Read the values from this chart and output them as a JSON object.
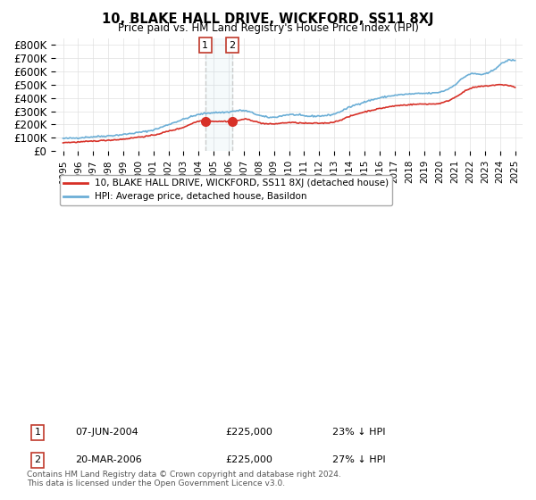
{
  "title": "10, BLAKE HALL DRIVE, WICKFORD, SS11 8XJ",
  "subtitle": "Price paid vs. HM Land Registry's House Price Index (HPI)",
  "red_label": "10, BLAKE HALL DRIVE, WICKFORD, SS11 8XJ (detached house)",
  "blue_label": "HPI: Average price, detached house, Basildon",
  "footnote": "Contains HM Land Registry data © Crown copyright and database right 2024.\nThis data is licensed under the Open Government Licence v3.0.",
  "transactions": [
    {
      "num": "1",
      "date": "07-JUN-2004",
      "price": "£225,000",
      "hpi": "23% ↓ HPI",
      "x": 2004.44
    },
    {
      "num": "2",
      "date": "20-MAR-2006",
      "price": "£225,000",
      "hpi": "27% ↓ HPI",
      "x": 2006.22
    }
  ],
  "vline_x1": 2004.44,
  "vline_x2": 2006.22,
  "ylim": [
    0,
    850000
  ],
  "xlim_start": 1995,
  "xlim_end": 2025.5,
  "yticks": [
    0,
    100000,
    200000,
    300000,
    400000,
    500000,
    600000,
    700000,
    800000
  ],
  "ytick_labels": [
    "£0",
    "£100K",
    "£200K",
    "£300K",
    "£400K",
    "£500K",
    "£600K",
    "£700K",
    "£800K"
  ],
  "xticks": [
    1995,
    1996,
    1997,
    1998,
    1999,
    2000,
    2001,
    2002,
    2003,
    2004,
    2005,
    2006,
    2007,
    2008,
    2009,
    2010,
    2011,
    2012,
    2013,
    2014,
    2015,
    2016,
    2017,
    2018,
    2019,
    2020,
    2021,
    2022,
    2023,
    2024,
    2025
  ],
  "blue_color": "#6baed6",
  "red_color": "#d73027",
  "marker1_x": 2004.44,
  "marker1_y": 225000,
  "marker2_x": 2006.22,
  "marker2_y": 225000
}
